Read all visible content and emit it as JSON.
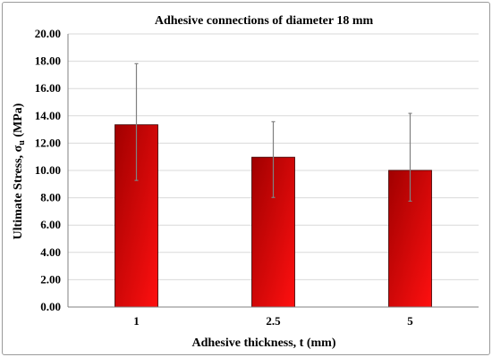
{
  "chart_data": {
    "type": "bar",
    "title": "Adhesive connections of diameter 18 mm",
    "xlabel": "Adhesive thickness, t (mm)",
    "ylabel_main": "Ultimate Stress, σ",
    "ylabel_sub": "u",
    "ylabel_unit": " (MPa)",
    "categories": [
      "1",
      "2.5",
      "5"
    ],
    "values": [
      13.35,
      10.97,
      10.01
    ],
    "error_upper": [
      17.82,
      13.57,
      14.18
    ],
    "error_lower": [
      9.27,
      8.02,
      7.75
    ],
    "ylim": [
      0,
      20
    ],
    "ytick_step": 2,
    "ytick_labels": [
      "0.00",
      "2.00",
      "4.00",
      "6.00",
      "8.00",
      "10.00",
      "12.00",
      "14.00",
      "16.00",
      "18.00",
      "20.00"
    ],
    "grid": true,
    "legend": "none",
    "colors": {
      "bar_dark": "#a00000",
      "bar_light": "#ff1010",
      "grid": "#d9d9d9",
      "axis": "#808080",
      "error": "#808080"
    }
  }
}
